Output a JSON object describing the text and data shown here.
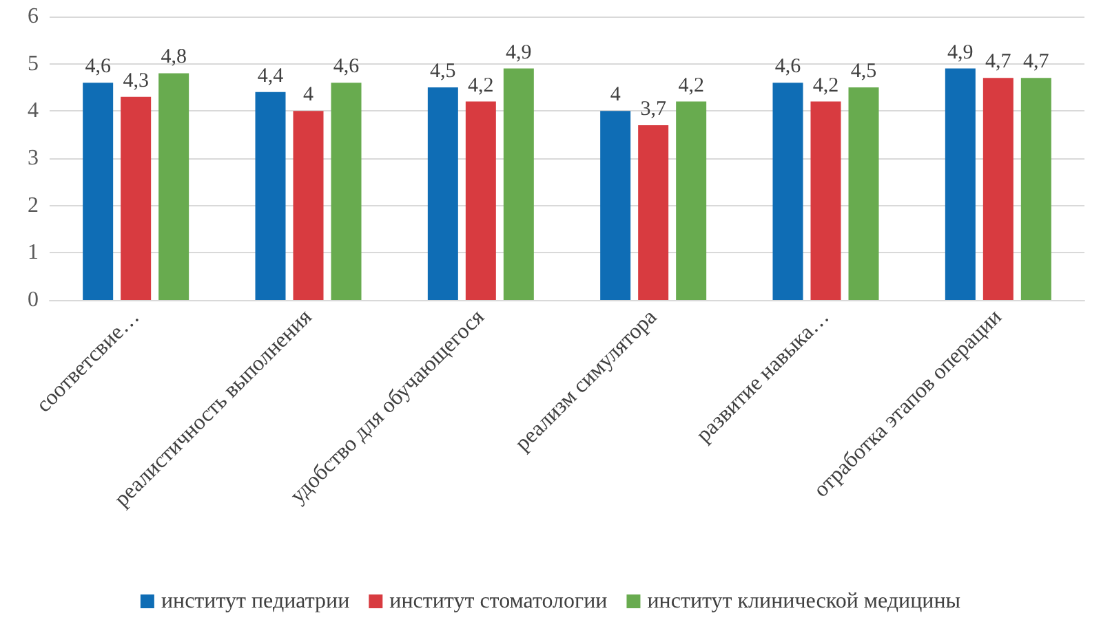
{
  "chart_data": {
    "type": "bar",
    "categories": [
      "соответсвие…",
      "реалистичность выполнения",
      "удобство для обучающегося",
      "реализм симулятора",
      "развитие навыка…",
      "отработка этапов операции"
    ],
    "series": [
      {
        "name": "институт педиатрии",
        "color": "#0f6db5",
        "values": [
          4.6,
          4.4,
          4.5,
          4,
          4.6,
          4.9
        ],
        "value_labels": [
          "4,6",
          "4,4",
          "4,5",
          "4",
          "4,6",
          "4,9"
        ]
      },
      {
        "name": "институт стоматологии",
        "color": "#d83b40",
        "values": [
          4.3,
          4,
          4.2,
          3.7,
          4.2,
          4.7
        ],
        "value_labels": [
          "4,3",
          "4",
          "4,2",
          "3,7",
          "4,2",
          "4,7"
        ]
      },
      {
        "name": "институт клинической медицины",
        "color": "#68ab4f",
        "values": [
          4.8,
          4.6,
          4.9,
          4.2,
          4.5,
          4.7
        ],
        "value_labels": [
          "4,8",
          "4,6",
          "4,9",
          "4,2",
          "4,5",
          "4,7"
        ]
      }
    ],
    "ylim": [
      0,
      6
    ],
    "yticks": [
      0,
      1,
      2,
      3,
      4,
      5,
      6
    ],
    "grid": "y",
    "legend": "bottom"
  }
}
